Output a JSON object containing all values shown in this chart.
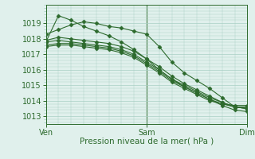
{
  "bg_color": "#e0f0ec",
  "grid_color": "#a8cfc4",
  "line_color": "#2d6a2d",
  "marker": "D",
  "marker_size": 2.5,
  "xlabel": "Pression niveau de la mer( hPa )",
  "xlim": [
    0,
    48
  ],
  "ylim": [
    1012.5,
    1020.2
  ],
  "yticks": [
    1013,
    1014,
    1015,
    1016,
    1017,
    1018,
    1019
  ],
  "xtick_positions": [
    0,
    24,
    48
  ],
  "xtick_labels": [
    "Ven",
    "Sam",
    "Dim"
  ],
  "series": [
    {
      "x": [
        0,
        3,
        6,
        9,
        12,
        15,
        18,
        21,
        24,
        27,
        30,
        33,
        36,
        39,
        42,
        45,
        48
      ],
      "y": [
        1018.3,
        1018.6,
        1018.9,
        1019.1,
        1019.0,
        1018.8,
        1018.7,
        1018.5,
        1018.3,
        1017.5,
        1016.5,
        1015.8,
        1015.3,
        1014.8,
        1014.2,
        1013.6,
        1013.5
      ]
    },
    {
      "x": [
        0,
        3,
        6,
        9,
        12,
        15,
        18,
        21,
        24,
        27,
        30,
        33,
        36,
        39,
        42,
        45,
        48
      ],
      "y": [
        1017.8,
        1019.5,
        1019.2,
        1018.8,
        1018.5,
        1018.2,
        1017.8,
        1017.3,
        1016.7,
        1016.0,
        1015.4,
        1014.9,
        1014.5,
        1014.1,
        1013.7,
        1013.4,
        1013.3
      ]
    },
    {
      "x": [
        0,
        3,
        6,
        9,
        12,
        15,
        18,
        21,
        24,
        27,
        30,
        33,
        36,
        39,
        42,
        45,
        48
      ],
      "y": [
        1017.9,
        1018.1,
        1018.0,
        1017.9,
        1017.8,
        1017.7,
        1017.5,
        1017.2,
        1016.7,
        1016.2,
        1015.6,
        1015.1,
        1014.7,
        1014.3,
        1013.9,
        1013.6,
        1013.5
      ]
    },
    {
      "x": [
        0,
        3,
        6,
        9,
        12,
        15,
        18,
        21,
        24,
        27,
        30,
        33,
        36,
        39,
        42,
        45,
        48
      ],
      "y": [
        1017.8,
        1017.9,
        1017.8,
        1017.7,
        1017.6,
        1017.5,
        1017.3,
        1017.0,
        1016.5,
        1016.0,
        1015.4,
        1015.0,
        1014.6,
        1014.2,
        1013.9,
        1013.6,
        1013.5
      ]
    },
    {
      "x": [
        0,
        3,
        6,
        9,
        12,
        15,
        18,
        21,
        24,
        27,
        30,
        33,
        36,
        39,
        42,
        45,
        48
      ],
      "y": [
        1017.6,
        1017.7,
        1017.7,
        1017.6,
        1017.5,
        1017.4,
        1017.2,
        1016.9,
        1016.4,
        1015.9,
        1015.3,
        1014.9,
        1014.5,
        1014.1,
        1013.8,
        1013.6,
        1013.6
      ]
    },
    {
      "x": [
        0,
        3,
        6,
        9,
        12,
        15,
        18,
        21,
        24,
        27,
        30,
        33,
        36,
        39,
        42,
        45,
        48
      ],
      "y": [
        1017.5,
        1017.6,
        1017.6,
        1017.5,
        1017.4,
        1017.3,
        1017.1,
        1016.8,
        1016.3,
        1015.8,
        1015.2,
        1014.8,
        1014.4,
        1014.0,
        1013.8,
        1013.7,
        1013.7
      ]
    }
  ]
}
